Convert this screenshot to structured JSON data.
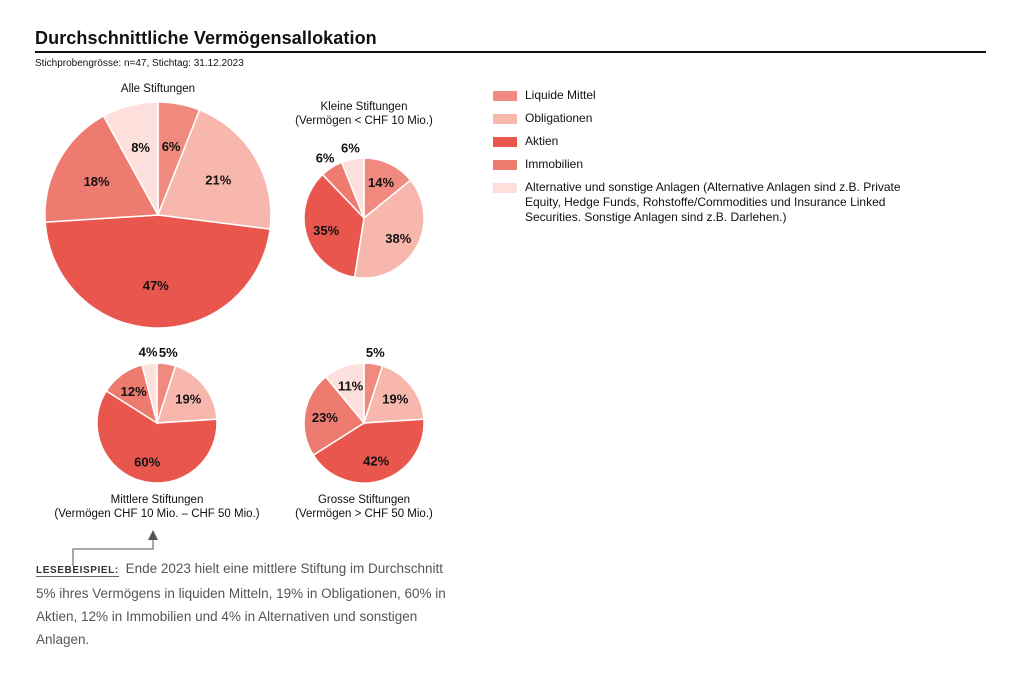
{
  "header": {
    "title": "Durchschnittliche Vermögensallokation",
    "subtitle": "Stichprobengrösse: n=47, Stichtag: 31.12.2023"
  },
  "colors": {
    "liquide": "#f08a7e",
    "obligationen": "#f8b7ad",
    "aktien": "#e8564e",
    "immobilien": "#ee7b6f",
    "alternative": "#fde0dc"
  },
  "legend": [
    {
      "key": "liquide",
      "label": "Liquide Mittel"
    },
    {
      "key": "obligationen",
      "label": "Obligationen"
    },
    {
      "key": "aktien",
      "label": "Aktien"
    },
    {
      "key": "immobilien",
      "label": "Immobilien"
    },
    {
      "key": "alternative",
      "label": "Alternative und sonstige Anlagen (Alternative Anlagen sind z.B. Private Equity, Hedge Funds, Rohstoffe/Commodities und Insurance Linked Securities. Sonstige Anlagen sind z.B. Darlehen.)"
    }
  ],
  "chart_data": [
    {
      "type": "pie",
      "title": "Alle Stiftungen",
      "subtitle": "",
      "categories": [
        "Liquide Mittel",
        "Obligationen",
        "Aktien",
        "Immobilien",
        "Alternative und sonstige Anlagen"
      ],
      "values": [
        6,
        21,
        47,
        18,
        8
      ]
    },
    {
      "type": "pie",
      "title": "Kleine Stiftungen",
      "subtitle": "(Vermögen < CHF 10 Mio.)",
      "categories": [
        "Liquide Mittel",
        "Obligationen",
        "Aktien",
        "Immobilien",
        "Alternative und sonstige Anlagen"
      ],
      "values": [
        14,
        38,
        35,
        6,
        6
      ]
    },
    {
      "type": "pie",
      "title": "Mittlere Stiftungen",
      "subtitle": "(Vermögen CHF 10 Mio. – CHF 50 Mio.)",
      "categories": [
        "Liquide Mittel",
        "Obligationen",
        "Aktien",
        "Immobilien",
        "Alternative und sonstige Anlagen"
      ],
      "values": [
        5,
        19,
        60,
        12,
        4
      ]
    },
    {
      "type": "pie",
      "title": "Grosse Stiftungen",
      "subtitle": "(Vermögen > CHF 50 Mio.)",
      "categories": [
        "Liquide Mittel",
        "Obligationen",
        "Aktien",
        "Immobilien",
        "Alternative und sonstige Anlagen"
      ],
      "values": [
        5,
        19,
        42,
        23,
        11
      ]
    }
  ],
  "note": {
    "label": "LESEBEISPIEL:",
    "text": "Ende 2023 hielt eine mittlere Stiftung im Durchschnitt 5% ihres Vermögens in liquiden Mitteln, 19% in Obligationen, 60% in Aktien, 12% in Immobilien und 4% in Alternativen und sonstigen Anlagen."
  }
}
